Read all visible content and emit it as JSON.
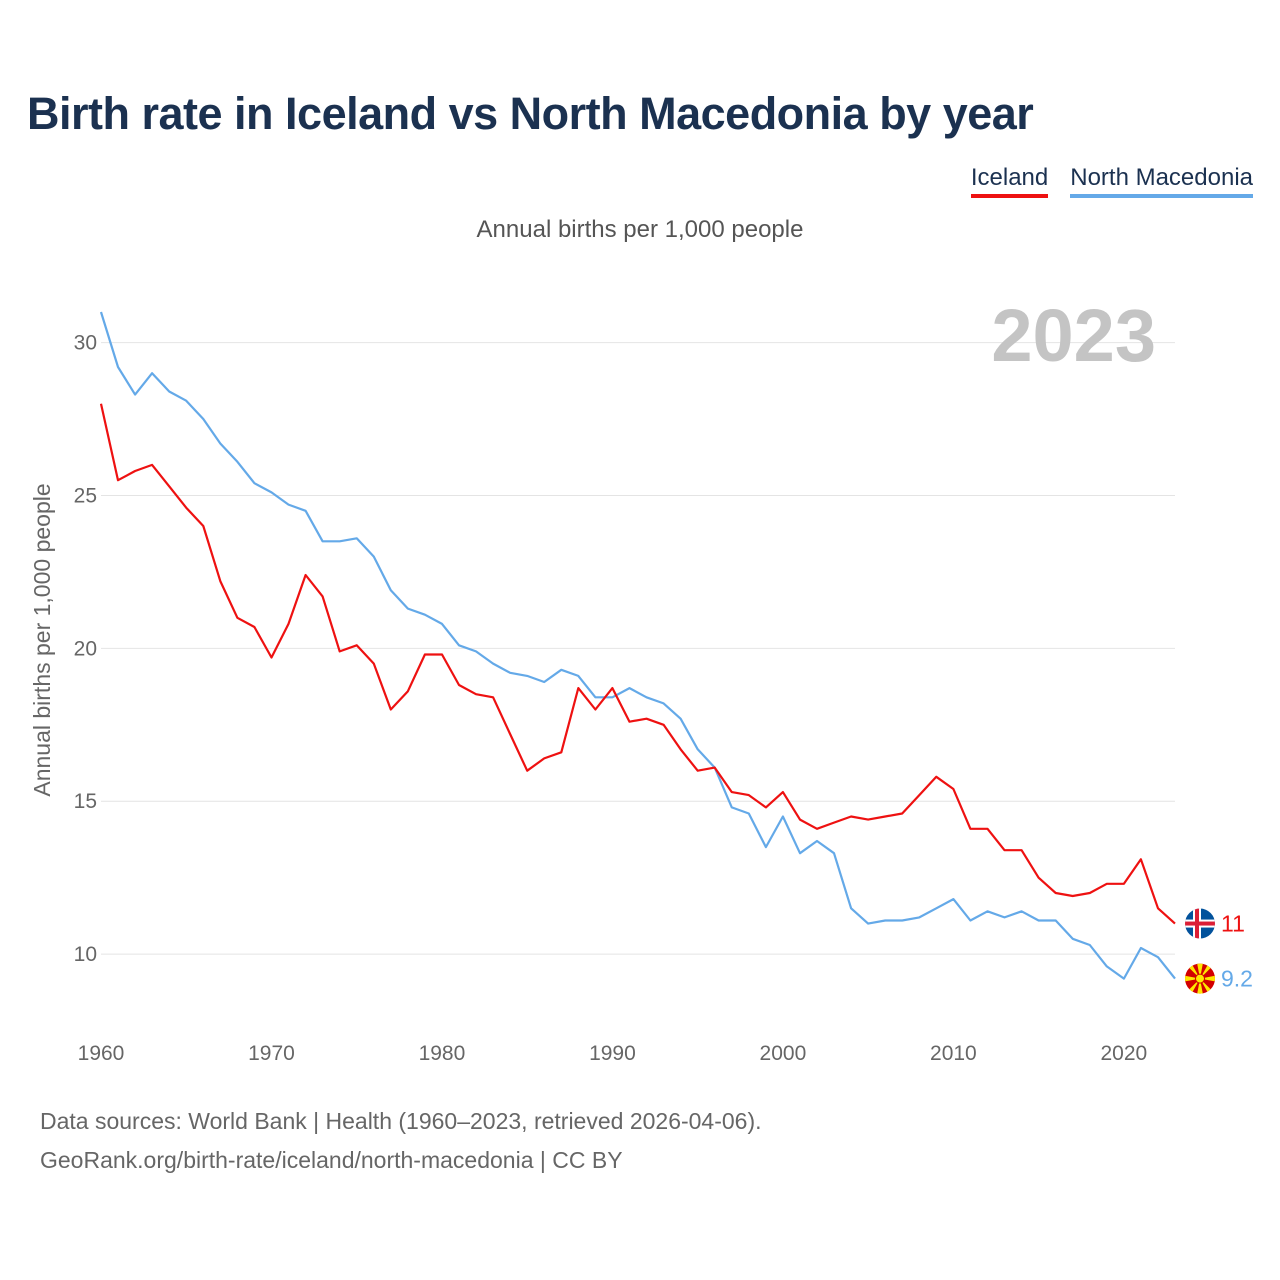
{
  "title": "Birth rate in Iceland vs North Macedonia by year",
  "legend": {
    "iceland": "Iceland",
    "north_macedonia": "North Macedonia"
  },
  "subtitle": "Annual births per 1,000 people",
  "source_line1": "Data sources: World Bank | Health (1960–2023, retrieved 2026-04-06).",
  "source_line2": "GeoRank.org/birth-rate/iceland/north-macedonia | CC BY",
  "colors": {
    "iceland": "#ee1111",
    "north_macedonia": "#64a9e8",
    "title": "#1b3150"
  },
  "chart_data": {
    "type": "line",
    "title": "Birth rate in Iceland vs North Macedonia by year",
    "ylabel": "Annual births per 1,000 people",
    "xlabel": "",
    "year_label": "2023",
    "xlim": [
      1960,
      2023
    ],
    "ylim": [
      8.5,
      31
    ],
    "x_ticks": [
      1960,
      1970,
      1980,
      1990,
      2000,
      2010,
      2020
    ],
    "y_ticks": [
      10,
      15,
      20,
      25,
      30
    ],
    "x": [
      1960,
      1961,
      1962,
      1963,
      1964,
      1965,
      1966,
      1967,
      1968,
      1969,
      1970,
      1971,
      1972,
      1973,
      1974,
      1975,
      1976,
      1977,
      1978,
      1979,
      1980,
      1981,
      1982,
      1983,
      1984,
      1985,
      1986,
      1987,
      1988,
      1989,
      1990,
      1991,
      1992,
      1993,
      1994,
      1995,
      1996,
      1997,
      1998,
      1999,
      2000,
      2001,
      2002,
      2003,
      2004,
      2005,
      2006,
      2007,
      2008,
      2009,
      2010,
      2011,
      2012,
      2013,
      2014,
      2015,
      2016,
      2017,
      2018,
      2019,
      2020,
      2021,
      2022,
      2023
    ],
    "series": [
      {
        "name": "Iceland",
        "end_label": "11",
        "flag": "iceland-flag",
        "values": [
          28.0,
          25.5,
          25.8,
          26.0,
          25.3,
          24.6,
          24.0,
          22.2,
          21.0,
          20.7,
          19.7,
          20.8,
          22.4,
          21.7,
          19.9,
          20.1,
          19.5,
          18.0,
          18.6,
          19.8,
          19.8,
          18.8,
          18.5,
          18.4,
          17.2,
          16.0,
          16.4,
          16.6,
          18.7,
          18.0,
          18.7,
          17.6,
          17.7,
          17.5,
          16.7,
          16.0,
          16.1,
          15.3,
          15.2,
          14.8,
          15.3,
          14.4,
          14.1,
          14.3,
          14.5,
          14.4,
          14.5,
          14.6,
          15.2,
          15.8,
          15.4,
          14.1,
          14.1,
          13.4,
          13.4,
          12.5,
          12.0,
          11.9,
          12.0,
          12.3,
          12.3,
          13.1,
          11.5,
          11.0
        ]
      },
      {
        "name": "North Macedonia",
        "end_label": "9.2",
        "flag": "north-macedonia-flag",
        "values": [
          31.0,
          29.2,
          28.3,
          29.0,
          28.4,
          28.1,
          27.5,
          26.7,
          26.1,
          25.4,
          25.1,
          24.7,
          24.5,
          23.5,
          23.5,
          23.6,
          23.0,
          21.9,
          21.3,
          21.1,
          20.8,
          20.1,
          19.9,
          19.5,
          19.2,
          19.1,
          18.9,
          19.3,
          19.1,
          18.4,
          18.4,
          18.7,
          18.4,
          18.2,
          17.7,
          16.7,
          16.1,
          14.8,
          14.6,
          13.5,
          14.5,
          13.3,
          13.7,
          13.3,
          11.5,
          11.0,
          11.1,
          11.1,
          11.2,
          11.5,
          11.8,
          11.1,
          11.4,
          11.2,
          11.4,
          11.1,
          11.1,
          10.5,
          10.3,
          9.6,
          9.2,
          10.2,
          9.9,
          9.2
        ]
      }
    ]
  }
}
